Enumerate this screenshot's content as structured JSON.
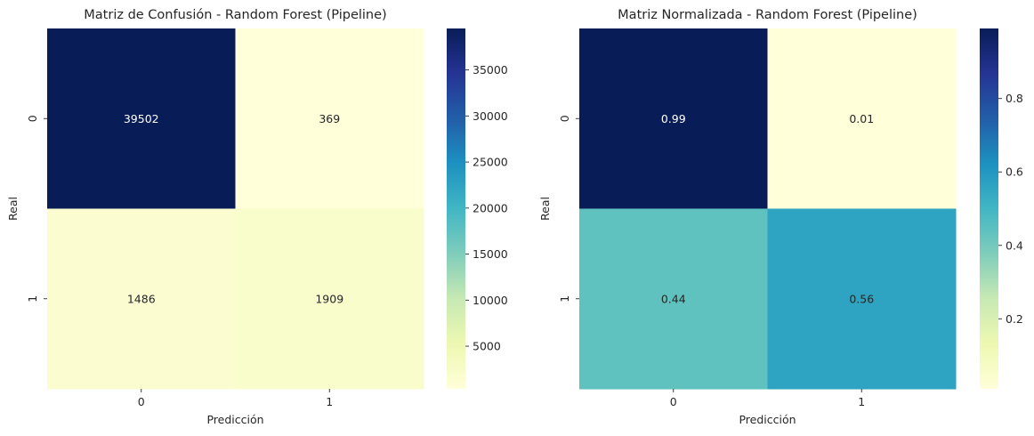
{
  "chart_data": [
    {
      "type": "heatmap",
      "title": "Matriz de Confusión - Random Forest (Pipeline)",
      "xlabel": "Predicción",
      "ylabel": "Real",
      "x_categories": [
        "0",
        "1"
      ],
      "y_categories": [
        "0",
        "1"
      ],
      "values": [
        [
          39502,
          369
        ],
        [
          1486,
          1909
        ]
      ],
      "cell_labels": [
        [
          "39502",
          "369"
        ],
        [
          "1486",
          "1909"
        ]
      ],
      "colormap": "YlGnBu",
      "vmin": 369,
      "vmax": 39502,
      "colorbar_ticks": [
        5000,
        10000,
        15000,
        20000,
        25000,
        30000,
        35000
      ],
      "colorbar_tick_labels": [
        "5000",
        "10000",
        "15000",
        "20000",
        "25000",
        "30000",
        "35000"
      ]
    },
    {
      "type": "heatmap",
      "title": "Matriz Normalizada - Random Forest (Pipeline)",
      "xlabel": "Predicción",
      "ylabel": "Real",
      "x_categories": [
        "0",
        "1"
      ],
      "y_categories": [
        "0",
        "1"
      ],
      "values": [
        [
          0.9907,
          0.0093
        ],
        [
          0.4377,
          0.5623
        ]
      ],
      "cell_labels": [
        [
          "0.99",
          "0.01"
        ],
        [
          "0.44",
          "0.56"
        ]
      ],
      "colormap": "YlGnBu",
      "vmin": 0.0093,
      "vmax": 0.9907,
      "colorbar_ticks": [
        0.2,
        0.4,
        0.6,
        0.8
      ],
      "colorbar_tick_labels": [
        "0.2",
        "0.4",
        "0.6",
        "0.8"
      ]
    }
  ],
  "colors": {
    "text_dark": "#262626",
    "text_light": "#ffffff",
    "colormap_stops": [
      "#ffffd9",
      "#edf8b1",
      "#c7e9b4",
      "#7fcdbb",
      "#41b6c4",
      "#1d91c0",
      "#225ea8",
      "#253494",
      "#081d58"
    ]
  }
}
